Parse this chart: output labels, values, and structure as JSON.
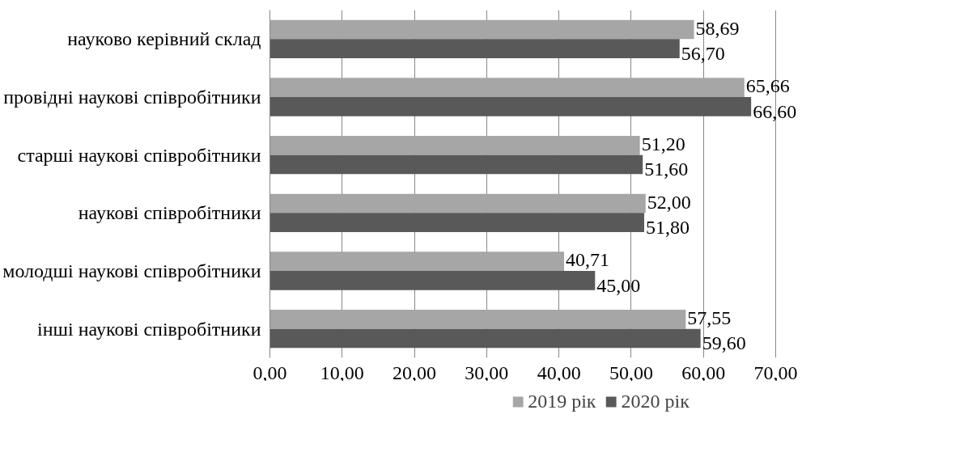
{
  "chart_data": {
    "type": "bar",
    "orientation": "horizontal",
    "categories": [
      "науково керівний склад",
      "провідні наукові співробітники",
      "старші наукові співробітники",
      "наукові співробітники",
      "молодші наукові співробітники",
      "інші наукові співробітники"
    ],
    "series": [
      {
        "name": "2019 рік",
        "color": "#a6a6a6",
        "values": [
          58.69,
          65.66,
          51.2,
          52.0,
          40.71,
          57.55
        ],
        "value_labels": [
          "58,69",
          "65,66",
          "51,20",
          "52,00",
          "40,71",
          "57,55"
        ]
      },
      {
        "name": "2020 рік",
        "color": "#595959",
        "values": [
          56.7,
          66.6,
          51.6,
          51.8,
          45.0,
          59.6
        ],
        "value_labels": [
          "56,70",
          "66,60",
          "51,60",
          "51,80",
          "45,00",
          "59,60"
        ]
      }
    ],
    "xlim": [
      0,
      70
    ],
    "xticks": [
      {
        "value": 0,
        "label": "0,00"
      },
      {
        "value": 10,
        "label": "10,00"
      },
      {
        "value": 20,
        "label": "20,00"
      },
      {
        "value": 30,
        "label": "30,00"
      },
      {
        "value": 40,
        "label": "40,00"
      },
      {
        "value": 50,
        "label": "50,00"
      },
      {
        "value": 60,
        "label": "60,00"
      },
      {
        "value": 70,
        "label": "70,00"
      }
    ],
    "grid": "x",
    "legend": "bottom"
  }
}
